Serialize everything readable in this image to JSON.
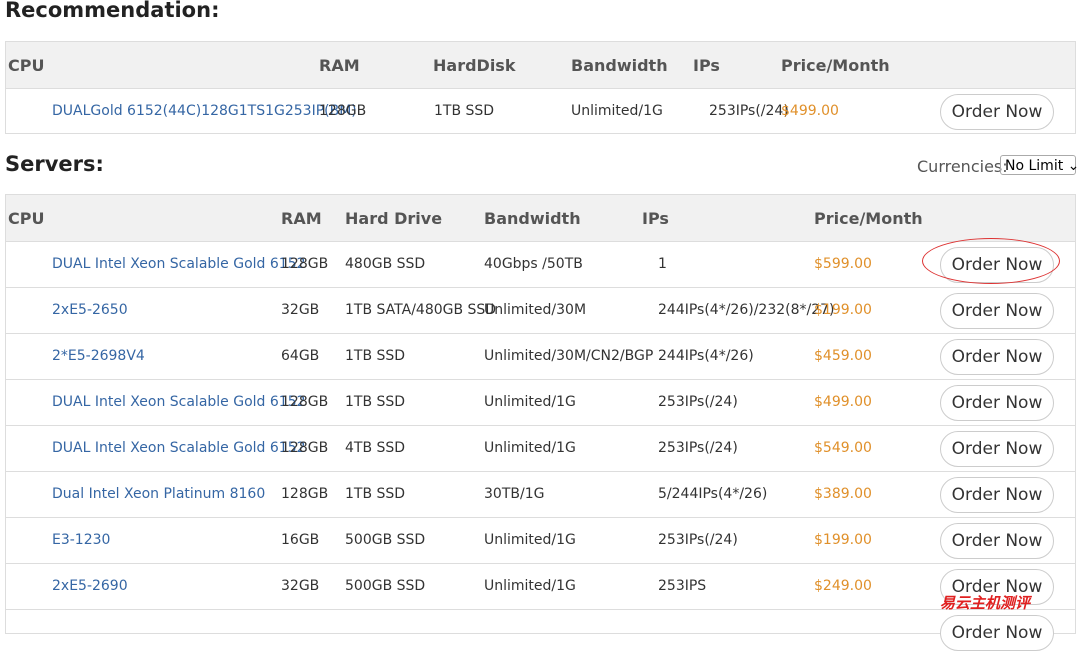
{
  "recommendation": {
    "title": "Recommendation:",
    "headers": [
      "CPU",
      "RAM",
      "HardDisk",
      "Bandwidth",
      "IPs",
      "Price/Month"
    ],
    "rows": [
      [
        "DUALGold 6152(44C)128G1TS1G253IP(BM)",
        "128GB",
        "1TB SSD",
        "Unlimited/1G",
        "253IPs(/24)",
        "$499.00"
      ]
    ]
  },
  "servers": {
    "title": "Servers:",
    "currency_label": "Currencies:",
    "currency_value": "No Limit",
    "headers": [
      "CPU",
      "RAM",
      "Hard Drive",
      "Bandwidth",
      "IPs",
      "Price/Month"
    ],
    "rows": [
      [
        "DUAL Intel Xeon Scalable Gold 6152",
        "128GB",
        "480GB SSD",
        "40Gbps /50TB",
        "1",
        "$599.00"
      ],
      [
        "2xE5-2650",
        "32GB",
        "1TB SATA/480GB SSD",
        "Unlimited/30M",
        "244IPs(4*/26)/232(8*/27)",
        "$199.00"
      ],
      [
        "2*E5-2698V4",
        "64GB",
        "1TB SSD",
        "Unlimited/30M/CN2/BGP",
        "244IPs(4*/26)",
        "$459.00"
      ],
      [
        "DUAL Intel Xeon Scalable Gold 6152",
        "128GB",
        "1TB SSD",
        "Unlimited/1G",
        "253IPs(/24)",
        "$499.00"
      ],
      [
        "DUAL Intel Xeon Scalable Gold 6152",
        "128GB",
        "4TB SSD",
        "Unlimited/1G",
        "253IPs(/24)",
        "$549.00"
      ],
      [
        "Dual Intel Xeon Platinum 8160",
        "128GB",
        "1TB SSD",
        "30TB/1G",
        "5/244IPs(4*/26)",
        "$389.00"
      ],
      [
        "E3-1230",
        "16GB",
        "500GB SSD",
        "Unlimited/1G",
        "253IPs(/24)",
        "$199.00"
      ],
      [
        "2xE5-2690",
        "32GB",
        "500GB SSD",
        "Unlimited/1G",
        "253IPS",
        "$249.00"
      ]
    ]
  },
  "order_label": "Order Now",
  "watermark": "易云主机测评"
}
